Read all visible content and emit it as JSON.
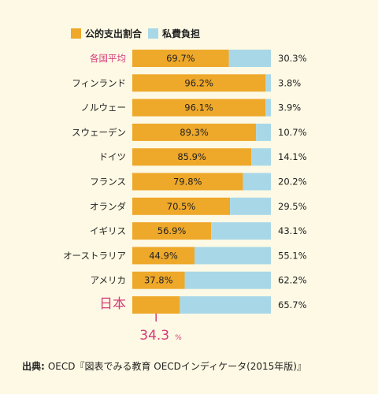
{
  "chart_data": {
    "type": "bar",
    "stacked": true,
    "orientation": "horizontal",
    "xlim": [
      0,
      100
    ],
    "series": [
      {
        "name": "公的支出割合",
        "color": "#eea82a"
      },
      {
        "name": "私費負担",
        "color": "#a8d8e8"
      }
    ],
    "rows": [
      {
        "category": "各国平均",
        "public": 69.7,
        "public_label": "69.7%",
        "private": 30.3,
        "private_label": "30.3%",
        "highlight": "avg"
      },
      {
        "category": "フィンランド",
        "public": 96.2,
        "public_label": "96.2%",
        "private": 3.8,
        "private_label": "3.8%"
      },
      {
        "category": "ノルウェー",
        "public": 96.1,
        "public_label": "96.1%",
        "private": 3.9,
        "private_label": "3.9%"
      },
      {
        "category": "スウェーデン",
        "public": 89.3,
        "public_label": "89.3%",
        "private": 10.7,
        "private_label": "10.7%"
      },
      {
        "category": "ドイツ",
        "public": 85.9,
        "public_label": "85.9%",
        "private": 14.1,
        "private_label": "14.1%"
      },
      {
        "category": "フランス",
        "public": 79.8,
        "public_label": "79.8%",
        "private": 20.2,
        "private_label": "20.2%"
      },
      {
        "category": "オランダ",
        "public": 70.5,
        "public_label": "70.5%",
        "private": 29.5,
        "private_label": "29.5%"
      },
      {
        "category": "イギリス",
        "public": 56.9,
        "public_label": "56.9%",
        "private": 43.1,
        "private_label": "43.1%"
      },
      {
        "category": "オーストラリア",
        "public": 44.9,
        "public_label": "44.9%",
        "private": 55.1,
        "private_label": "55.1%"
      },
      {
        "category": "アメリカ",
        "public": 37.8,
        "public_label": "37.8%",
        "private": 62.2,
        "private_label": "62.2%"
      },
      {
        "category": "日本",
        "public": 34.3,
        "public_label": "",
        "private": 65.7,
        "private_label": "65.7%",
        "highlight": "japan"
      }
    ],
    "japan_callout": {
      "value": "34.3",
      "unit": "%"
    }
  },
  "colors": {
    "highlight_text": "#d63a7a",
    "background": "#fdf9e4"
  },
  "source": {
    "head": "出典:",
    "text": "OECD『図表でみる教育 OECDインディケータ(2015年版)』"
  }
}
